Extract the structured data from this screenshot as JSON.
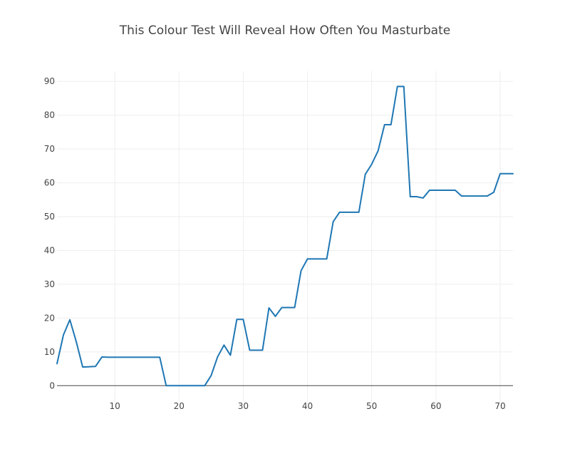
{
  "chart_data": {
    "type": "line",
    "title": "This Colour Test Will Reveal How Often You Masturbate",
    "xlabel": "",
    "ylabel": "",
    "xlim": [
      1,
      72
    ],
    "ylim": [
      -5,
      93
    ],
    "x_ticks": [
      10,
      20,
      30,
      40,
      50,
      60,
      70
    ],
    "y_ticks": [
      0,
      10,
      20,
      30,
      40,
      50,
      60,
      70,
      80,
      90
    ],
    "grid": true,
    "line_color": "#1f77b4",
    "x": [
      1,
      2,
      3,
      4,
      5,
      6,
      7,
      8,
      9,
      10,
      11,
      12,
      13,
      14,
      15,
      16,
      17,
      18,
      19,
      20,
      21,
      22,
      23,
      24,
      25,
      26,
      27,
      28,
      29,
      30,
      31,
      32,
      33,
      34,
      35,
      36,
      37,
      38,
      39,
      40,
      41,
      42,
      43,
      44,
      45,
      46,
      47,
      48,
      49,
      50,
      51,
      52,
      53,
      54,
      55,
      56,
      57,
      58,
      59,
      60,
      61,
      62,
      63,
      64,
      65,
      66,
      67,
      68,
      69,
      70,
      71,
      72
    ],
    "values": [
      6.5,
      15,
      19.5,
      13,
      5.5,
      5.6,
      5.7,
      8.5,
      8.4,
      8.4,
      8.4,
      8.4,
      8.4,
      8.4,
      8.4,
      8.4,
      8.4,
      0,
      0,
      0,
      0,
      0,
      0,
      0,
      3,
      8.5,
      12,
      9,
      19.6,
      19.6,
      10.5,
      10.5,
      10.5,
      23,
      20.5,
      23.1,
      23.1,
      23.1,
      34,
      37.5,
      37.5,
      37.5,
      37.5,
      48.5,
      51.3,
      51.3,
      51.3,
      51.3,
      62.5,
      65.5,
      69.5,
      77.2,
      77.2,
      88.5,
      88.5,
      55.9,
      55.9,
      55.5,
      57.8,
      57.8,
      57.8,
      57.8,
      57.8,
      56.1,
      56.1,
      56.1,
      56.1,
      56.1,
      57.2,
      62.7,
      62.7,
      62.7
    ]
  }
}
